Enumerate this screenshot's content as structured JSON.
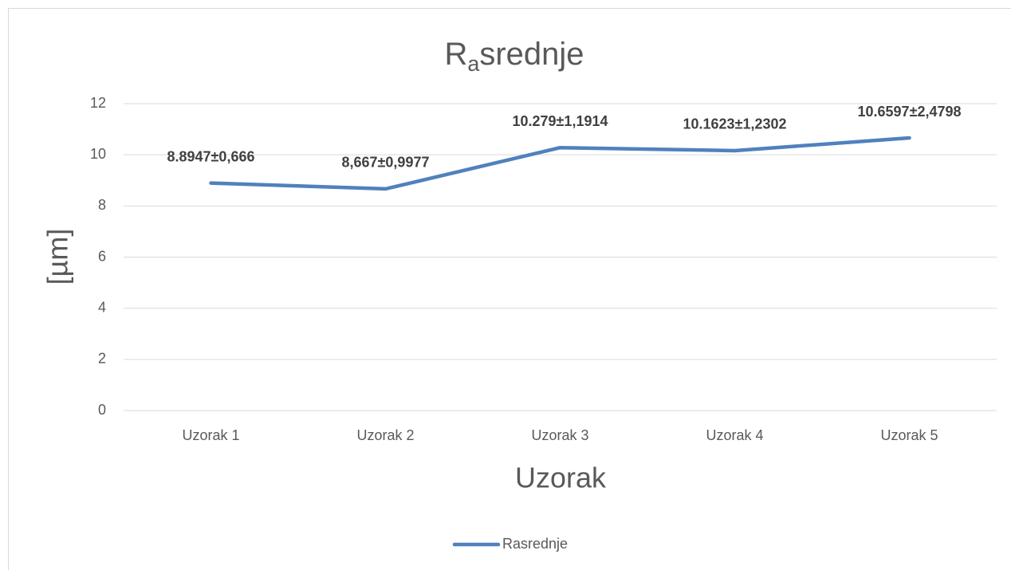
{
  "chart_data": {
    "type": "line",
    "title": {
      "text": "R",
      "subscript": "a",
      "suffix": "srednje"
    },
    "x_label": "Uzorak",
    "y_label": "[µm]",
    "categories": [
      "Uzorak 1",
      "Uzorak 2",
      "Uzorak 3",
      "Uzorak 4",
      "Uzorak 5"
    ],
    "series": [
      {
        "name": "Rasrednje",
        "color": "#4f81bd",
        "values": [
          8.8947,
          8.667,
          10.279,
          10.1623,
          10.6597
        ],
        "value_labels": [
          "8.8947±0,666",
          "8,667±0,9977",
          "10.279±1,1914",
          "10.1623±1,2302",
          "10.6597±2,4798"
        ]
      }
    ],
    "ylim": [
      0,
      12
    ],
    "yticks": [
      0,
      2,
      4,
      6,
      8,
      10,
      12
    ],
    "grid": true,
    "legend": "bottom"
  }
}
